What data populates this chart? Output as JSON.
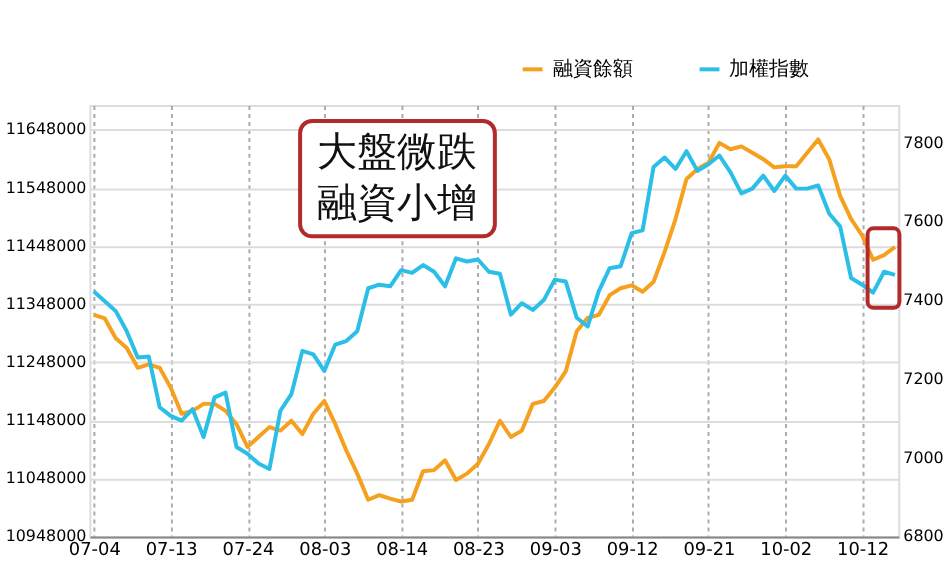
{
  "chart_data": {
    "type": "line",
    "categories": [
      "07-04",
      null,
      null,
      null,
      null,
      null,
      null,
      "07-13",
      null,
      null,
      null,
      null,
      null,
      null,
      "07-24",
      null,
      null,
      null,
      null,
      null,
      null,
      "08-03",
      null,
      null,
      null,
      null,
      null,
      null,
      "08-14",
      null,
      null,
      null,
      null,
      null,
      null,
      "08-23",
      null,
      null,
      null,
      null,
      null,
      null,
      "09-03",
      null,
      null,
      null,
      null,
      null,
      null,
      "09-12",
      null,
      null,
      null,
      null,
      null,
      null,
      "09-21",
      null,
      null,
      null,
      null,
      null,
      null,
      "10-02",
      null,
      null,
      null,
      null,
      null,
      null,
      "10-12",
      null,
      null,
      null
    ],
    "series": [
      {
        "name": "融資餘額",
        "color": "#f5a01e",
        "values": [
          11329000,
          11323000,
          11289000,
          11272000,
          11238000,
          11244000,
          11238000,
          11204000,
          11159000,
          11164000,
          11176000,
          11176000,
          11164000,
          11141000,
          11102000,
          11119000,
          11136000,
          11130000,
          11147000,
          11124000,
          11159000,
          11181000,
          11141000,
          11096000,
          11056000,
          11011000,
          11019000,
          11013000,
          11008000,
          11011000,
          11060000,
          11062000,
          11079000,
          11045000,
          11056000,
          11073000,
          11107000,
          11147000,
          11119000,
          11130000,
          11176000,
          11181000,
          11204000,
          11232000,
          11301000,
          11324000,
          11329000,
          11363000,
          11375000,
          11380000,
          11369000,
          11386000,
          11437000,
          11494000,
          11563000,
          11580000,
          11591000,
          11625000,
          11614000,
          11619000,
          11608000,
          11597000,
          11583000,
          11585000,
          11585000,
          11608000,
          11631000,
          11597000,
          11534000,
          11494000,
          11466000,
          11424000,
          11432000,
          11446000
        ]
      },
      {
        "name": "加權指數",
        "color": "#2bbfe8",
        "axis": "y2",
        "values": [
          7422,
          7397,
          7372,
          7321,
          7254,
          7257,
          7128,
          7106,
          7094,
          7123,
          7052,
          7153,
          7165,
          7027,
          7010,
          6985,
          6971,
          7119,
          7161,
          7271,
          7262,
          7220,
          7287,
          7296,
          7321,
          7430,
          7439,
          7435,
          7476,
          7469,
          7489,
          7472,
          7435,
          7506,
          7498,
          7503,
          7472,
          7467,
          7363,
          7392,
          7375,
          7400,
          7452,
          7447,
          7355,
          7333,
          7422,
          7481,
          7486,
          7570,
          7577,
          7738,
          7762,
          7733,
          7778,
          7728,
          7745,
          7767,
          7725,
          7671,
          7683,
          7716,
          7677,
          7716,
          7683,
          7683,
          7691,
          7620,
          7587,
          7456,
          7439,
          7419,
          7472,
          7464
        ]
      }
    ],
    "ylim": [
      10948000,
      11690000
    ],
    "yticks": [
      10948000,
      11048000,
      11148000,
      11248000,
      11348000,
      11448000,
      11548000,
      11648000
    ],
    "y2lim": [
      6800,
      7895
    ],
    "y2ticks": [
      6800,
      7000,
      7200,
      7400,
      7600,
      7800
    ],
    "annotations": [
      "大盤微跌",
      "融資小增"
    ],
    "grid": true,
    "legend": "top right",
    "marker": "none",
    "line_style": "solid"
  }
}
